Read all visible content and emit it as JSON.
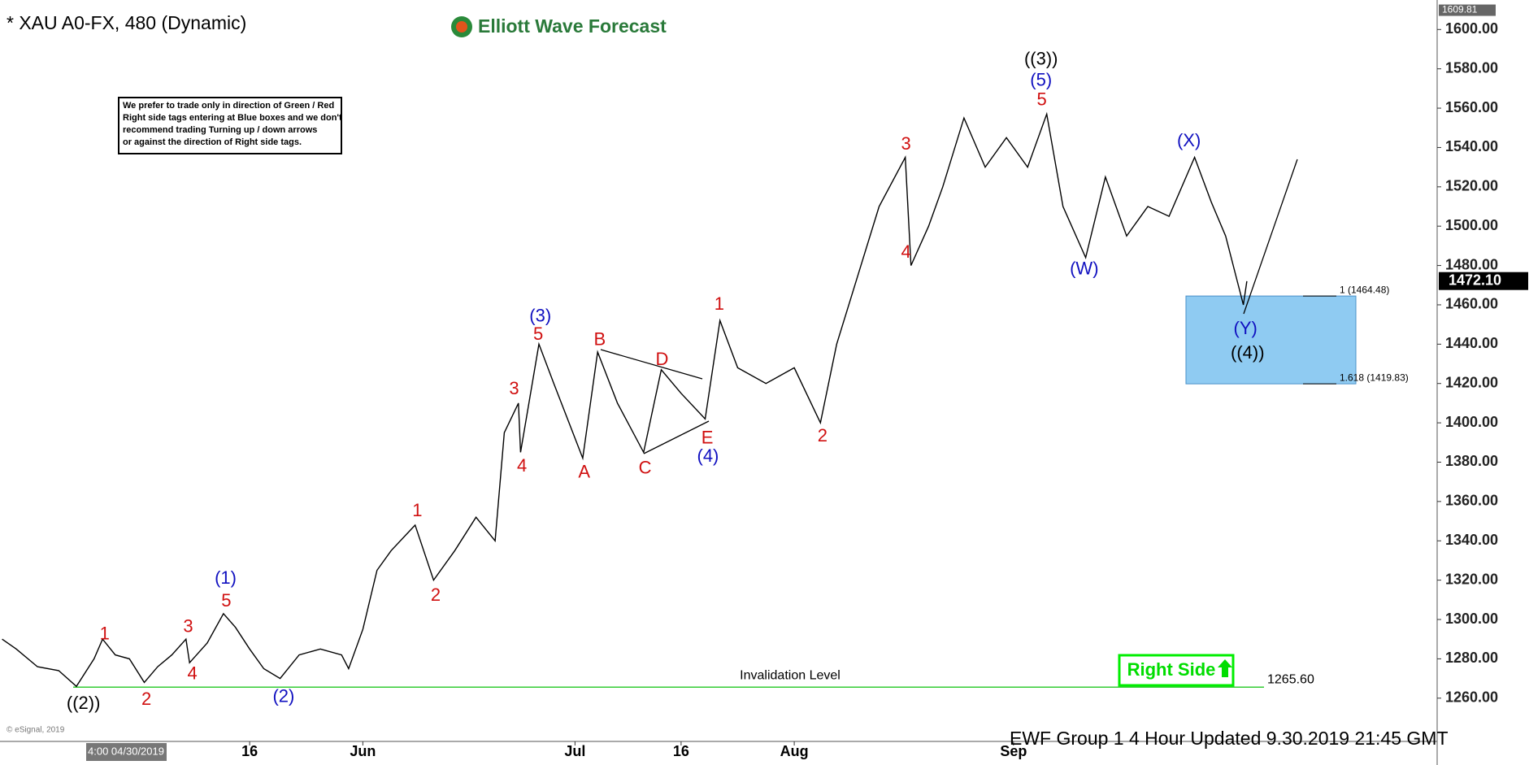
{
  "chart_data": {
    "type": "line",
    "title": "* XAU A0-FX, 480 (Dynamic)",
    "logo": "Elliott Wave Forecast",
    "note": [
      "We prefer to trade only in direction of Green / Red",
      "Right side tags entering at Blue boxes and we don't",
      "recommend trading Turning up / down arrows",
      "or against the direction of Right side tags."
    ],
    "footer": "EWF Group 1 4 Hour  Updated 9.30.2019 21:45 GMT",
    "copyright": "© eSignal, 2019",
    "cursor_date": "4:00 04/30/2019",
    "right_side": "Right Side",
    "color": "#000000",
    "x": [
      -20,
      -18,
      -15,
      -12,
      -9.5,
      -7,
      -5.8,
      -4,
      -2,
      0.1,
      2,
      4,
      6,
      6.5,
      9,
      11.3,
      13,
      15,
      17,
      19.3,
      22,
      25,
      28,
      29,
      31,
      33,
      35,
      38.4,
      41,
      44,
      47,
      49.7,
      51,
      53,
      53.3,
      55.9,
      58,
      62.1,
      64.2,
      67,
      70.7,
      73.2,
      76,
      79.4,
      81.5,
      84,
      88,
      92,
      95.7,
      98,
      101,
      104,
      107.7,
      108.5,
      111,
      113,
      116,
      119,
      122,
      125,
      127.7,
      130,
      133.2,
      136,
      139,
      142,
      145,
      148.6,
      151,
      153,
      155.5,
      156
    ],
    "values": [
      1290,
      1285,
      1276,
      1274,
      1266,
      1280,
      1290,
      1282,
      1280,
      1268,
      1276,
      1282,
      1290,
      1278,
      1288,
      1303,
      1296,
      1285,
      1275,
      1270,
      1282,
      1285,
      1282,
      1275,
      1295,
      1325,
      1335,
      1348,
      1320,
      1335,
      1352,
      1340,
      1395,
      1410,
      1385,
      1440,
      1420,
      1382,
      1436,
      1410,
      1385,
      1427,
      1415,
      1402,
      1452,
      1428,
      1420,
      1428,
      1400,
      1440,
      1475,
      1510,
      1535,
      1480,
      1500,
      1520,
      1555,
      1530,
      1545,
      1530,
      1557,
      1510,
      1484,
      1525,
      1495,
      1510,
      1505,
      1535,
      1512,
      1495,
      1460,
      1472
    ],
    "xlim": [
      -20.3,
      182.9
    ],
    "xticks": [
      {
        "value": 15,
        "label": "16"
      },
      {
        "value": 31,
        "label": "Jun"
      },
      {
        "value": 61,
        "label": "Jul"
      },
      {
        "value": 76,
        "label": "16"
      },
      {
        "value": 92,
        "label": "Aug"
      },
      {
        "value": 123,
        "label": "Sep"
      }
    ],
    "ylim": [
      1238,
      1615
    ],
    "yticks": [
      {
        "value": 1260,
        "label": "1260.00"
      },
      {
        "value": 1280,
        "label": "1280.00"
      },
      {
        "value": 1300,
        "label": "1300.00"
      },
      {
        "value": 1320,
        "label": "1320.00"
      },
      {
        "value": 1340,
        "label": "1340.00"
      },
      {
        "value": 1360,
        "label": "1360.00"
      },
      {
        "value": 1380,
        "label": "1380.00"
      },
      {
        "value": 1400,
        "label": "1400.00"
      },
      {
        "value": 1420,
        "label": "1420.00"
      },
      {
        "value": 1440,
        "label": "1440.00"
      },
      {
        "value": 1460,
        "label": "1460.00"
      },
      {
        "value": 1480,
        "label": "1480.00"
      },
      {
        "value": 1500,
        "label": "1500.00"
      },
      {
        "value": 1520,
        "label": "1520.00"
      },
      {
        "value": 1540,
        "label": "1540.00"
      },
      {
        "value": 1560,
        "label": "1560.00"
      },
      {
        "value": 1580,
        "label": "1580.00"
      },
      {
        "value": 1600,
        "label": "1600.00"
      }
    ],
    "last_price": {
      "value": 1472.1,
      "label": "1472.10"
    },
    "high_price": {
      "value": 1609.81,
      "label": "1609.81"
    },
    "invalidation": {
      "text": "Invalidation Level",
      "value": 1265.6,
      "label": "1265.60",
      "color": "#33cc33"
    },
    "fib_box": {
      "top": 1464.48,
      "bottom": 1419.83,
      "top_label": "1 (1464.48)",
      "bottom_label": "1.618 (1419.83)",
      "color": "#8fcbf2"
    },
    "annotations": [
      {
        "text": "((2))",
        "x": -8.5,
        "y": 1257,
        "color": "#000000"
      },
      {
        "text": "1",
        "x": -5.5,
        "y": 1292.2,
        "color": "#d01010"
      },
      {
        "text": "2",
        "x": 0.4,
        "y": 1259,
        "color": "#d01010"
      },
      {
        "text": "3",
        "x": 6.3,
        "y": 1296,
        "color": "#d01010"
      },
      {
        "text": "4",
        "x": 6.9,
        "y": 1272,
        "color": "#d01010"
      },
      {
        "text": "5",
        "x": 11.7,
        "y": 1309,
        "color": "#d01010"
      },
      {
        "text": "(1)",
        "x": 11.6,
        "y": 1320.5,
        "color": "#1010c0"
      },
      {
        "text": "(2)",
        "x": 19.8,
        "y": 1260.5,
        "color": "#1010c0"
      },
      {
        "text": "1",
        "x": 38.7,
        "y": 1355,
        "color": "#d01010"
      },
      {
        "text": "2",
        "x": 41.3,
        "y": 1312,
        "color": "#d01010"
      },
      {
        "text": "3",
        "x": 52.4,
        "y": 1417,
        "color": "#d01010"
      },
      {
        "text": "4",
        "x": 53.5,
        "y": 1377.6,
        "color": "#d01010"
      },
      {
        "text": "5",
        "x": 55.8,
        "y": 1444.6,
        "color": "#d01010"
      },
      {
        "text": "(3)",
        "x": 56.1,
        "y": 1454,
        "color": "#1010c0"
      },
      {
        "text": "A",
        "x": 62.3,
        "y": 1374.6,
        "color": "#d01010"
      },
      {
        "text": "B",
        "x": 64.5,
        "y": 1442,
        "color": "#d01010"
      },
      {
        "text": "C",
        "x": 70.9,
        "y": 1376.6,
        "color": "#d01010"
      },
      {
        "text": "D",
        "x": 73.3,
        "y": 1431.7,
        "color": "#d01010"
      },
      {
        "text": "E",
        "x": 79.7,
        "y": 1392,
        "color": "#d01010"
      },
      {
        "text": "(4)",
        "x": 79.8,
        "y": 1382.6,
        "color": "#1010c0"
      },
      {
        "text": "1",
        "x": 81.4,
        "y": 1460,
        "color": "#d01010"
      },
      {
        "text": "2",
        "x": 96,
        "y": 1393,
        "color": "#d01010"
      },
      {
        "text": "3",
        "x": 107.8,
        "y": 1541.4,
        "color": "#d01010"
      },
      {
        "text": "4",
        "x": 107.8,
        "y": 1486.3,
        "color": "#d01010"
      },
      {
        "text": "5",
        "x": 127,
        "y": 1563.8,
        "color": "#d01010"
      },
      {
        "text": "(5)",
        "x": 126.9,
        "y": 1573.7,
        "color": "#1010c0"
      },
      {
        "text": "((3))",
        "x": 126.9,
        "y": 1584.6,
        "color": "#000000"
      },
      {
        "text": "(W)",
        "x": 133,
        "y": 1477.9,
        "color": "#1010c0"
      },
      {
        "text": "(X)",
        "x": 147.8,
        "y": 1543,
        "color": "#1010c0"
      },
      {
        "text": "(Y)",
        "x": 155.8,
        "y": 1447.6,
        "color": "#1010c0"
      },
      {
        "text": "((4))",
        "x": 156.1,
        "y": 1435.2,
        "color": "#000000"
      }
    ]
  }
}
